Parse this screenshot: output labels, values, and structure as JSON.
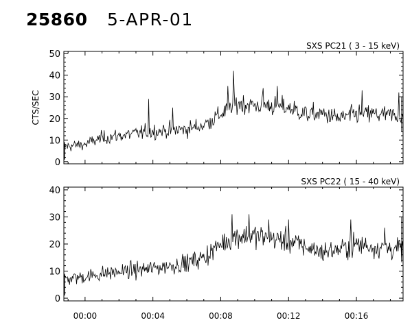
{
  "header": {
    "id": "25860",
    "date": "5-APR-01"
  },
  "chart_data": [
    {
      "type": "line",
      "title": "SXS PC21  (  3 - 15 keV)",
      "ylabel": "CTS/SEC",
      "xlabel": "",
      "ylim": [
        -1,
        51
      ],
      "yticks": [
        0,
        10,
        20,
        30,
        40,
        50
      ],
      "xlim": [
        "23:58:45",
        "00:18:45"
      ],
      "xticks": [
        "00:00",
        "00:04",
        "00:08",
        "00:12",
        "00:16"
      ],
      "grid": false,
      "trend": [
        {
          "x": "23:58:45",
          "y": 7
        },
        {
          "x": "00:00:00",
          "y": 8
        },
        {
          "x": "00:01:00",
          "y": 11
        },
        {
          "x": "00:04:00",
          "y": 14
        },
        {
          "x": "00:06:00",
          "y": 15
        },
        {
          "x": "00:07:00",
          "y": 17
        },
        {
          "x": "00:08:00",
          "y": 22
        },
        {
          "x": "00:09:00",
          "y": 27
        },
        {
          "x": "00:10:00",
          "y": 26
        },
        {
          "x": "00:11:00",
          "y": 26
        },
        {
          "x": "00:12:00",
          "y": 25
        },
        {
          "x": "00:13:00",
          "y": 22
        },
        {
          "x": "00:14:00",
          "y": 22
        },
        {
          "x": "00:15:00",
          "y": 20
        },
        {
          "x": "00:16:00",
          "y": 22
        },
        {
          "x": "00:17:00",
          "y": 22
        },
        {
          "x": "00:18:45",
          "y": 21
        }
      ],
      "spikes": [
        {
          "x": "00:03:45",
          "y": 29
        },
        {
          "x": "00:05:10",
          "y": 25
        },
        {
          "x": "00:08:45",
          "y": 42
        },
        {
          "x": "00:08:25",
          "y": 35
        },
        {
          "x": "00:10:30",
          "y": 34
        },
        {
          "x": "00:11:20",
          "y": 35
        },
        {
          "x": "00:16:20",
          "y": 33
        },
        {
          "x": "00:18:30",
          "y": 32
        }
      ]
    },
    {
      "type": "line",
      "title": "SXS PC22  ( 15 - 40 keV)",
      "ylabel": "",
      "xlabel": "",
      "ylim": [
        -1,
        41
      ],
      "yticks": [
        0,
        10,
        20,
        30,
        40
      ],
      "xlim": [
        "23:58:45",
        "00:18:45"
      ],
      "xticks": [
        "00:00",
        "00:04",
        "00:08",
        "00:12",
        "00:16"
      ],
      "grid": false,
      "trend": [
        {
          "x": "23:58:45",
          "y": 7
        },
        {
          "x": "00:00:00",
          "y": 8
        },
        {
          "x": "00:01:00",
          "y": 9
        },
        {
          "x": "00:04:00",
          "y": 11
        },
        {
          "x": "00:06:00",
          "y": 13
        },
        {
          "x": "00:07:00",
          "y": 15
        },
        {
          "x": "00:08:00",
          "y": 20
        },
        {
          "x": "00:09:00",
          "y": 23
        },
        {
          "x": "00:10:00",
          "y": 23
        },
        {
          "x": "00:11:00",
          "y": 22
        },
        {
          "x": "00:12:00",
          "y": 21
        },
        {
          "x": "00:13:00",
          "y": 19
        },
        {
          "x": "00:14:00",
          "y": 17
        },
        {
          "x": "00:15:00",
          "y": 18
        },
        {
          "x": "00:16:00",
          "y": 20
        },
        {
          "x": "00:17:00",
          "y": 19
        },
        {
          "x": "00:18:45",
          "y": 18
        }
      ],
      "spikes": [
        {
          "x": "00:08:40",
          "y": 31
        },
        {
          "x": "00:09:40",
          "y": 31
        },
        {
          "x": "00:10:50",
          "y": 29
        },
        {
          "x": "00:12:00",
          "y": 29
        },
        {
          "x": "00:15:40",
          "y": 29
        },
        {
          "x": "00:17:40",
          "y": 26
        }
      ]
    }
  ]
}
